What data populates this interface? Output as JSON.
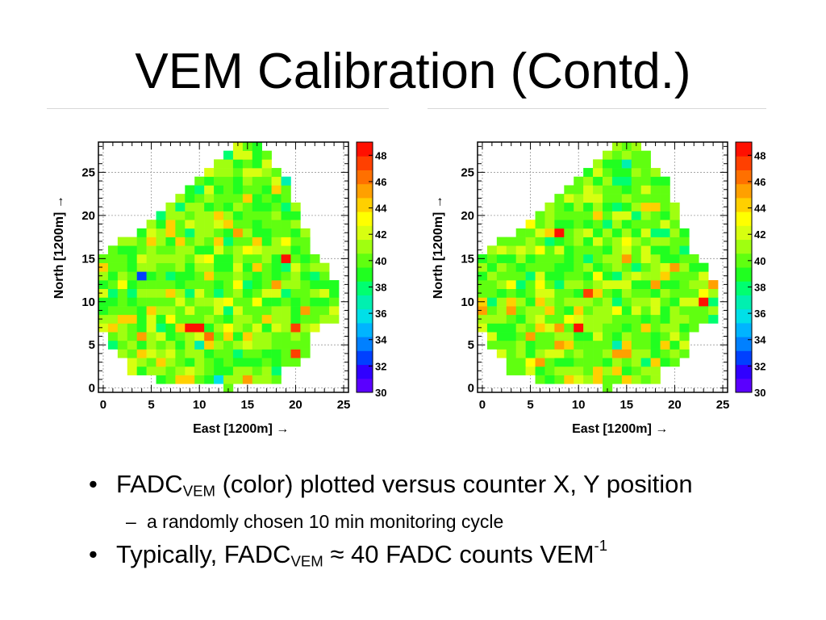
{
  "slide": {
    "title": "VEM Calibration (Contd.)",
    "bullets": [
      {
        "pre": "FADC",
        "sub": "VEM",
        "post": " (color) plotted versus counter X, Y position"
      },
      {
        "pre": "a randomly chosen 10 min monitoring cycle"
      },
      {
        "pre": "Typically, FADC",
        "sub": "VEM",
        "post": " ≈ 40 FADC counts VEM",
        "sup": "-1"
      }
    ],
    "bullet_glyph": "•",
    "dash_glyph": "–"
  },
  "chart_data": [
    {
      "type": "heatmap",
      "title": "",
      "xlabel": "East [1200m] →",
      "ylabel": "North [1200m] →",
      "xlim": [
        -0.5,
        25.5
      ],
      "ylim": [
        -0.5,
        28.5
      ],
      "xticks": [
        "0",
        "5",
        "10",
        "15",
        "20",
        "25"
      ],
      "yticks": [
        "0",
        "5",
        "10",
        "15",
        "20",
        "25"
      ],
      "zlim": [
        30,
        49
      ],
      "zticks": [
        "30",
        "32",
        "34",
        "36",
        "38",
        "40",
        "42",
        "44",
        "46",
        "48"
      ],
      "colormap": [
        "#5a00ff",
        "#3000ff",
        "#0040ff",
        "#0080ff",
        "#00b4ff",
        "#00e0e8",
        "#00f0b0",
        "#00ff70",
        "#20ff20",
        "#60ff10",
        "#a0ff10",
        "#d8ff10",
        "#ffff00",
        "#ffd000",
        "#ffa000",
        "#ff7000",
        "#ff4000",
        "#ff1000"
      ],
      "grid": true,
      "hotspots": [
        {
          "x": 4,
          "y": 13,
          "v": 33
        },
        {
          "x": 19,
          "y": 15,
          "v": 48
        },
        {
          "x": 9,
          "y": 7,
          "v": 48
        },
        {
          "x": 10,
          "y": 7,
          "v": 48
        },
        {
          "x": 11,
          "y": 6,
          "v": 46
        },
        {
          "x": 20,
          "y": 7,
          "v": 47
        },
        {
          "x": 20,
          "y": 4,
          "v": 47
        },
        {
          "x": 21,
          "y": 9,
          "v": 45
        },
        {
          "x": 18,
          "y": 12,
          "v": 45
        },
        {
          "x": 4,
          "y": 6,
          "v": 45
        },
        {
          "x": 15,
          "y": 1,
          "v": 45
        },
        {
          "x": 14,
          "y": 4,
          "v": 38
        },
        {
          "x": 12,
          "y": 1,
          "v": 36
        },
        {
          "x": 10,
          "y": 5,
          "v": 37
        },
        {
          "x": 13,
          "y": 17,
          "v": 38
        },
        {
          "x": 19,
          "y": 24,
          "v": 37
        },
        {
          "x": 9,
          "y": 11,
          "v": 38
        },
        {
          "x": 22,
          "y": 13,
          "v": 38
        }
      ]
    },
    {
      "type": "heatmap",
      "title": "",
      "xlabel": "East [1200m] →",
      "ylabel": "North [1200m] →",
      "xlim": [
        -0.5,
        25.5
      ],
      "ylim": [
        -0.5,
        28.5
      ],
      "xticks": [
        "0",
        "5",
        "10",
        "15",
        "20",
        "25"
      ],
      "yticks": [
        "0",
        "5",
        "10",
        "15",
        "20",
        "25"
      ],
      "zlim": [
        30,
        49
      ],
      "zticks": [
        "30",
        "32",
        "34",
        "36",
        "38",
        "40",
        "42",
        "44",
        "46",
        "48"
      ],
      "colormap": [
        "#5a00ff",
        "#3000ff",
        "#0040ff",
        "#0080ff",
        "#00b4ff",
        "#00e0e8",
        "#00f0b0",
        "#00ff70",
        "#20ff20",
        "#60ff10",
        "#a0ff10",
        "#d8ff10",
        "#ffff00",
        "#ffd000",
        "#ffa000",
        "#ff7000",
        "#ff4000",
        "#ff1000"
      ],
      "grid": true,
      "hotspots": [
        {
          "x": 8,
          "y": 18,
          "v": 48
        },
        {
          "x": 23,
          "y": 10,
          "v": 48
        },
        {
          "x": 11,
          "y": 11,
          "v": 47
        },
        {
          "x": 10,
          "y": 7,
          "v": 48
        },
        {
          "x": 15,
          "y": 15,
          "v": 45
        },
        {
          "x": 18,
          "y": 12,
          "v": 45
        },
        {
          "x": 24,
          "y": 12,
          "v": 45
        },
        {
          "x": 14,
          "y": 4,
          "v": 45
        },
        {
          "x": 15,
          "y": 4,
          "v": 45
        },
        {
          "x": 6,
          "y": 3,
          "v": 45
        },
        {
          "x": 20,
          "y": 14,
          "v": 45
        },
        {
          "x": 8,
          "y": 7,
          "v": 45
        },
        {
          "x": 14,
          "y": 5,
          "v": 37
        },
        {
          "x": 21,
          "y": 16,
          "v": 38
        },
        {
          "x": 14,
          "y": 13,
          "v": 38
        }
      ]
    }
  ]
}
